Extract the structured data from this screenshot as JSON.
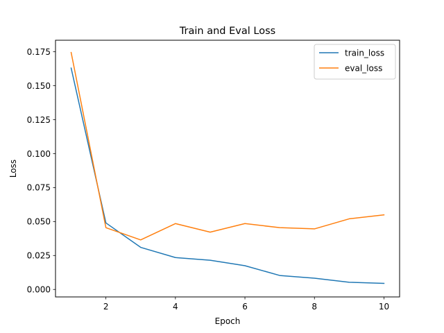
{
  "chart_data": {
    "type": "line",
    "title": "Train and Eval Loss",
    "xlabel": "Epoch",
    "ylabel": "Loss",
    "x": [
      1,
      2,
      3,
      4,
      5,
      6,
      7,
      8,
      9,
      10
    ],
    "xlim": [
      0.55,
      10.45
    ],
    "ylim": [
      -0.0055,
      0.1835
    ],
    "xticks": [
      2,
      4,
      6,
      8,
      10
    ],
    "xtick_labels": [
      "2",
      "4",
      "6",
      "8",
      "10"
    ],
    "yticks": [
      0.0,
      0.025,
      0.05,
      0.075,
      0.1,
      0.125,
      0.15,
      0.175
    ],
    "ytick_labels": [
      "0.000",
      "0.025",
      "0.050",
      "0.075",
      "0.100",
      "0.125",
      "0.150",
      "0.175"
    ],
    "grid": false,
    "legend_position": "top-right",
    "series": [
      {
        "name": "train_loss",
        "color": "#1f77b4",
        "values": [
          0.163,
          0.049,
          0.031,
          0.0235,
          0.0215,
          0.0175,
          0.0103,
          0.0083,
          0.0053,
          0.0045
        ]
      },
      {
        "name": "eval_loss",
        "color": "#ff7f0e",
        "values": [
          0.1745,
          0.0455,
          0.0365,
          0.0485,
          0.0422,
          0.0485,
          0.0455,
          0.0446,
          0.052,
          0.0549
        ]
      }
    ]
  }
}
